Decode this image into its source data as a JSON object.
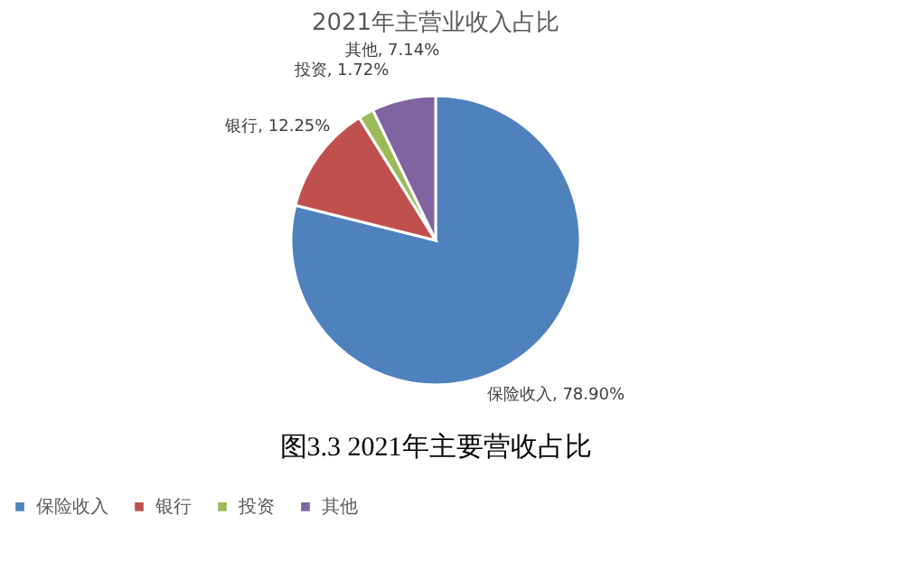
{
  "chart_data": {
    "type": "pie",
    "title": "2021年主营业收入占比",
    "categories": [
      "保险收入",
      "银行",
      "投资",
      "其他"
    ],
    "values": [
      78.9,
      12.25,
      1.72,
      7.14
    ],
    "colors": [
      "#4f81bd",
      "#c0504d",
      "#9bbb59",
      "#8064a2"
    ],
    "value_labels": [
      "保险收入, 78.90%",
      "银行, 12.25%",
      "投资, 1.72%",
      "其他, 7.14%"
    ],
    "legend": "bottom",
    "annotations": [
      "图3.3 2021年主要营收占比"
    ]
  }
}
